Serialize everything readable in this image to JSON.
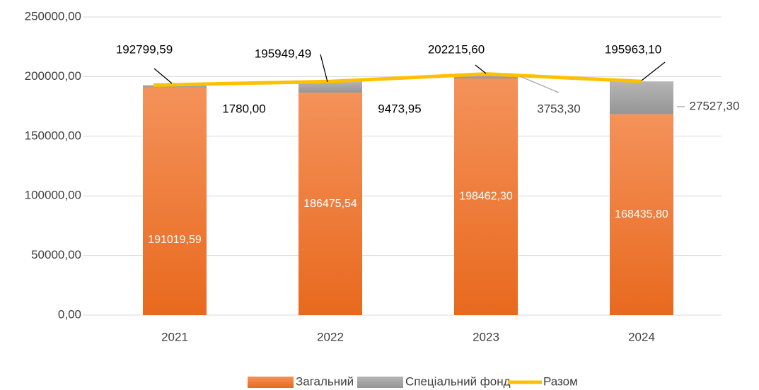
{
  "chart_data": {
    "type": "bar",
    "stacked": true,
    "categories": [
      "2021",
      "2022",
      "2023",
      "2024"
    ],
    "series": [
      {
        "name": "Загальний фонд",
        "color": "#ED7D31",
        "values": [
          191019.59,
          186475.54,
          198462.3,
          168435.8
        ],
        "value_labels": [
          "191019,59",
          "186475,54",
          "198462,30",
          "168435,80"
        ]
      },
      {
        "name": "Спеціальний фонд",
        "color": "#A5A5A5",
        "values": [
          1780.0,
          9473.95,
          3753.3,
          27527.3
        ],
        "value_labels": [
          "1780,00",
          "9473,95",
          "3753,30",
          "27527,30"
        ]
      },
      {
        "name": "Разом",
        "type": "line",
        "color": "#FFC000",
        "values": [
          192799.59,
          195949.49,
          202215.6,
          195963.1
        ],
        "value_labels": [
          "192799,59",
          "195949,49",
          "202215,60",
          "195963,10"
        ]
      }
    ],
    "ylim": [
      0,
      250000
    ],
    "yticks": [
      {
        "value": 0,
        "label": "0,00"
      },
      {
        "value": 50000,
        "label": "50000,00"
      },
      {
        "value": 100000,
        "label": "100000,00"
      },
      {
        "value": 150000,
        "label": "150000,00"
      },
      {
        "value": 200000,
        "label": "200000,00"
      },
      {
        "value": 250000,
        "label": "250000,00"
      }
    ],
    "grid": true,
    "legend": "bottom"
  }
}
